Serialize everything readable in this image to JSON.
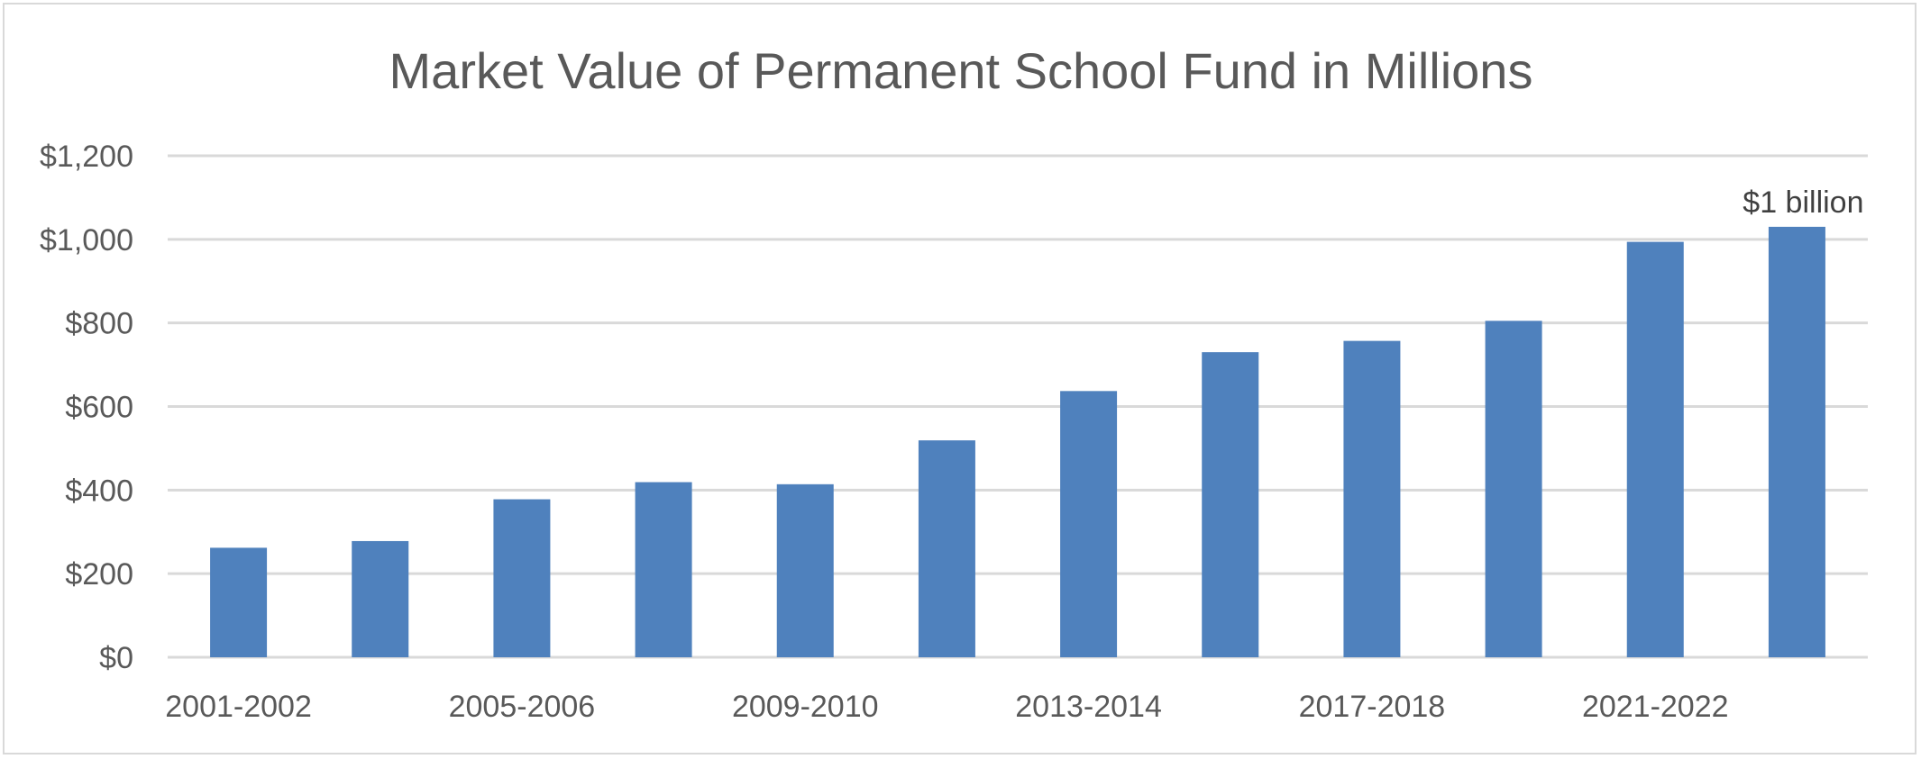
{
  "chart_data": {
    "type": "bar",
    "title": "Market Value of Permanent School Fund in Millions",
    "categories": [
      "2001-2002",
      "2003-2004",
      "2005-2006",
      "2007-2008",
      "2009-2010",
      "2011-2012",
      "2013-2014",
      "2015-2016",
      "2017-2018",
      "2019-2020",
      "2021-2022",
      "2023-2024"
    ],
    "category_labels_shown": [
      "2001-2002",
      "",
      "2005-2006",
      "",
      "2009-2010",
      "",
      "2013-2014",
      "",
      "2017-2018",
      "",
      "2021-2022",
      ""
    ],
    "values": [
      262,
      278,
      378,
      419,
      414,
      519,
      637,
      730,
      757,
      805,
      994,
      1030
    ],
    "ylim": [
      0,
      1200
    ],
    "yticks": [
      0,
      200,
      400,
      600,
      800,
      1000,
      1200
    ],
    "ytick_labels": [
      "$0",
      "$200",
      "$400",
      "$600",
      "$800",
      "$1,000",
      "$1,200"
    ],
    "bar_color": "#4f81bd",
    "grid": true,
    "annotations": [
      {
        "category_index": 11,
        "text": "$1 billion"
      }
    ]
  }
}
